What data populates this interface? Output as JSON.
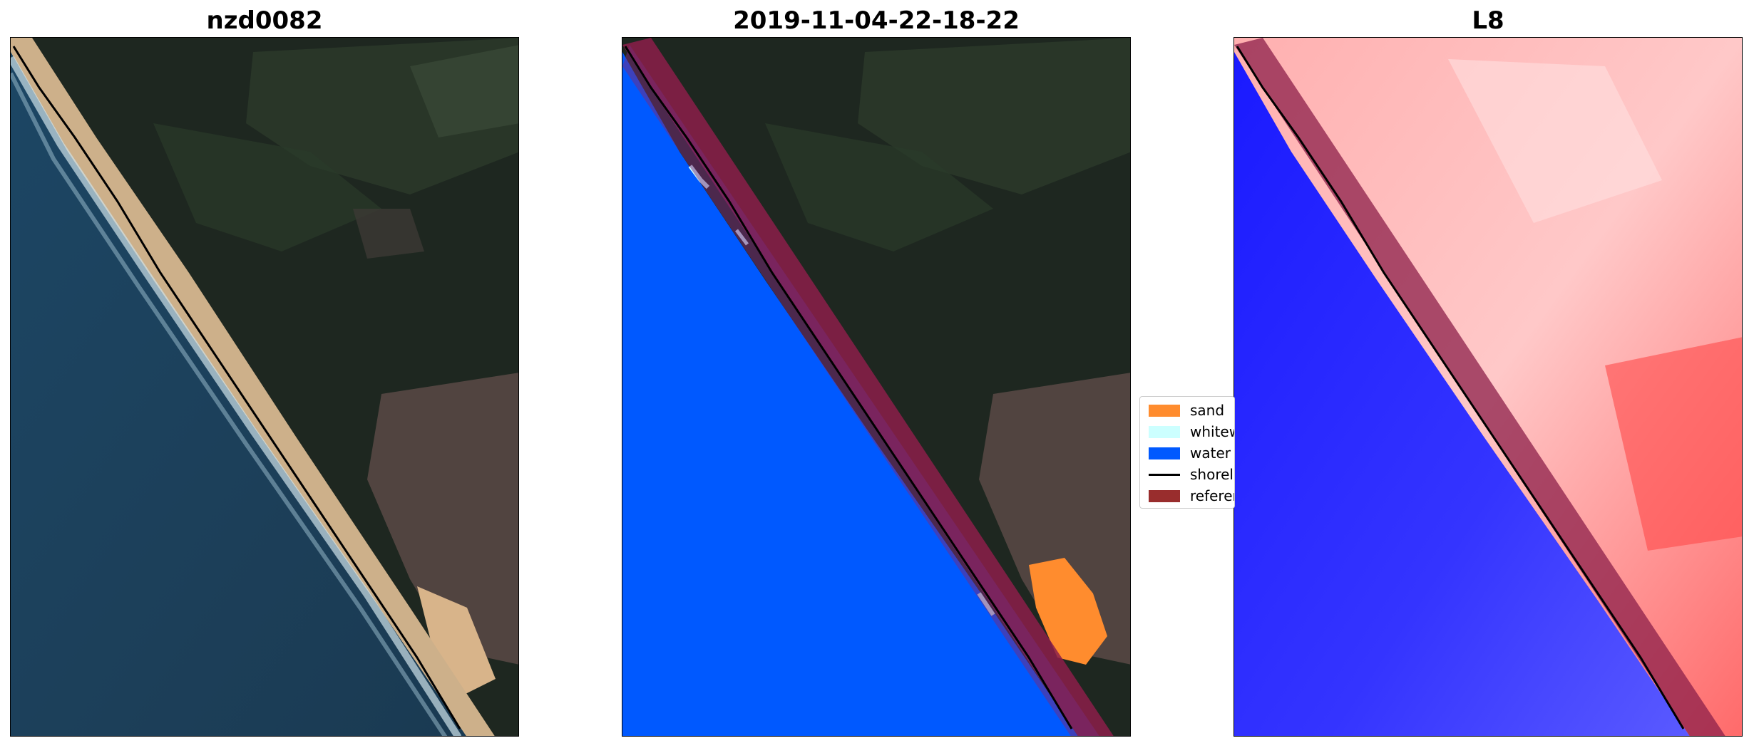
{
  "figure": {
    "panels": [
      {
        "title": "nzd0082",
        "kind": "rgb-image",
        "icon": "satellite-rgb-image"
      },
      {
        "title": "2019-11-04-22-18-22",
        "kind": "classified-image",
        "icon": "classification-map-image"
      },
      {
        "title": "L8",
        "kind": "index-image",
        "icon": "water-index-image"
      }
    ],
    "legend": {
      "items": [
        {
          "label": "sand",
          "color": "#ff8c2e",
          "kind": "patch"
        },
        {
          "label": "whitew",
          "color": "#ccffff",
          "kind": "patch"
        },
        {
          "label": "water",
          "color": "#0059ff",
          "kind": "patch"
        },
        {
          "label": "shorel",
          "color": "#000000",
          "kind": "line"
        },
        {
          "label": "referen",
          "color": "#992d2d",
          "kind": "patch"
        }
      ]
    },
    "colors": {
      "land_dark": "#1f2820",
      "ocean": "#1b3d56",
      "beach_sand": "#d9b98a",
      "water_class": "#0059ff",
      "reference_band": "#8c1f4a",
      "index_water": "#1a1aff",
      "index_land": "#ff8080"
    }
  }
}
